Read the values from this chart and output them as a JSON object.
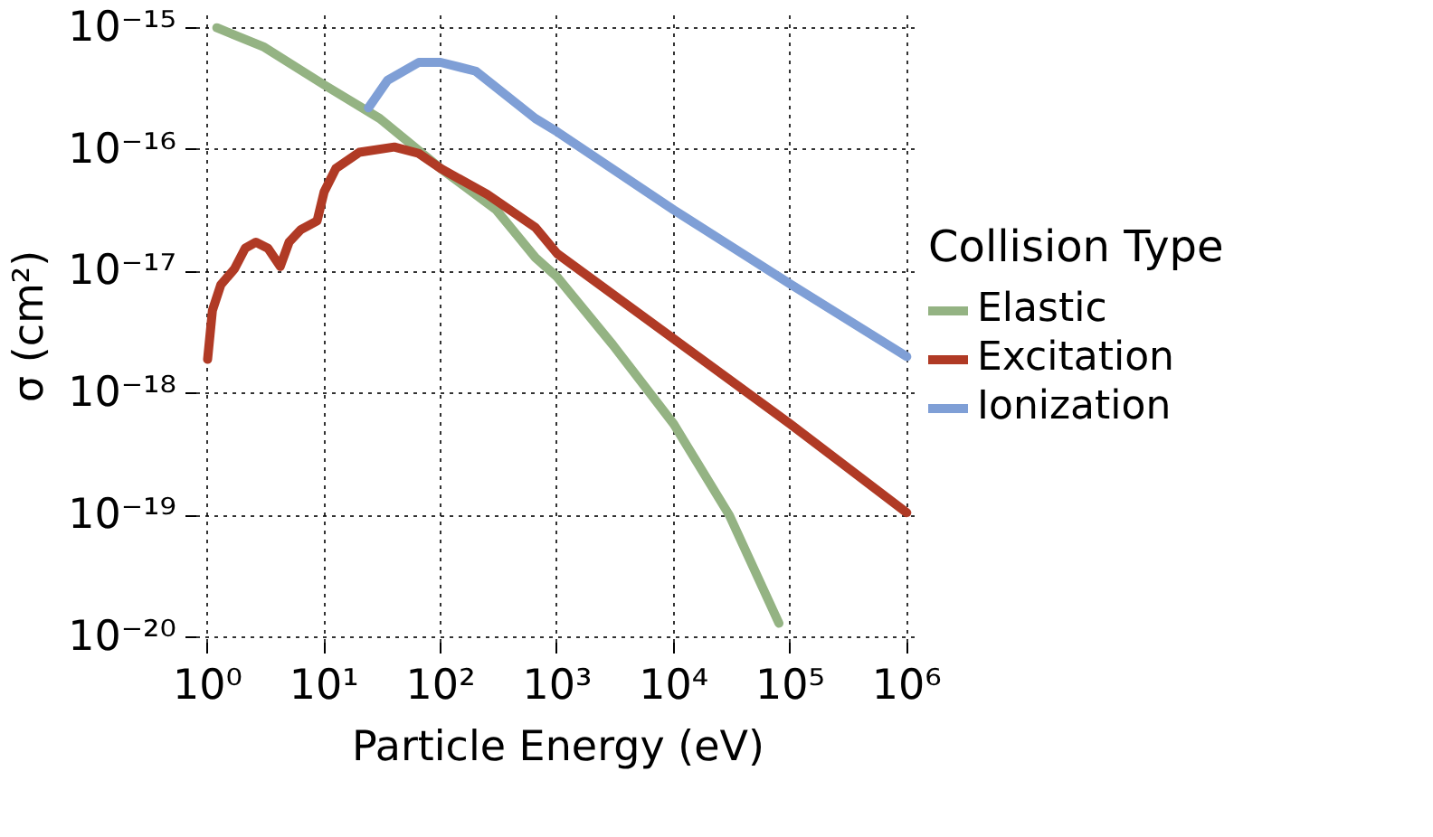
{
  "chart_data": {
    "type": "line",
    "xlabel": "Particle Energy (eV)",
    "ylabel": "σ (cm²)",
    "legend_title": "Collision Type",
    "log": "xy",
    "grid": true,
    "legend": "right",
    "line_style": "solid",
    "marker": "none",
    "xlim": [
      0.8,
      1300000.0
    ],
    "ylim": [
      9e-21,
      1.4e-15
    ],
    "xticks": [
      {
        "value": 1,
        "label": "10⁰"
      },
      {
        "value": 10,
        "label": "10¹"
      },
      {
        "value": 100,
        "label": "10²"
      },
      {
        "value": 1000,
        "label": "10³"
      },
      {
        "value": 10000,
        "label": "10⁴"
      },
      {
        "value": 100000,
        "label": "10⁵"
      },
      {
        "value": 1000000,
        "label": "10⁶"
      }
    ],
    "yticks": [
      {
        "value": 1e-20,
        "label": "10⁻²⁰"
      },
      {
        "value": 1e-19,
        "label": "10⁻¹⁹"
      },
      {
        "value": 1e-18,
        "label": "10⁻¹⁸"
      },
      {
        "value": 1e-17,
        "label": "10⁻¹⁷"
      },
      {
        "value": 1e-16,
        "label": "10⁻¹⁶"
      },
      {
        "value": 1e-15,
        "label": "10⁻¹⁵"
      }
    ],
    "series": [
      {
        "name": "Elastic",
        "color": "#94b383",
        "x": [
          1.2,
          3,
          10,
          30,
          100,
          300,
          650,
          1000,
          3000,
          10000,
          30000,
          80000
        ],
        "values": [
          1e-15,
          7e-16,
          3.4e-16,
          1.8e-16,
          7e-17,
          3.2e-17,
          1.3e-17,
          9e-18,
          2.5e-18,
          5.6e-19,
          1e-19,
          1.3e-20
        ]
      },
      {
        "name": "Excitation",
        "color": "#b03a25",
        "x": [
          1,
          1.1,
          1.3,
          1.7,
          2.1,
          2.6,
          3.3,
          4.2,
          5,
          6.3,
          8.7,
          10,
          12.6,
          20,
          40,
          65,
          100,
          250,
          650,
          1000,
          10000,
          100000,
          1000000
        ],
        "values": [
          1.9e-18,
          4.8e-18,
          7.8e-18,
          1.05e-17,
          1.55e-17,
          1.74e-17,
          1.55e-17,
          1.1e-17,
          1.74e-17,
          2.2e-17,
          2.6e-17,
          4.5e-17,
          7e-17,
          9.5e-17,
          1.05e-16,
          9.3e-17,
          7e-17,
          4.3e-17,
          2.3e-17,
          1.4e-17,
          2.8e-18,
          5.6e-19,
          1.05e-19
        ]
      },
      {
        "name": "Ionization",
        "color": "#7f9fd6",
        "x": [
          24,
          35,
          65,
          100,
          200,
          650,
          1000,
          10000,
          100000,
          1000000
        ],
        "values": [
          2.2e-16,
          3.7e-16,
          5.2e-16,
          5.2e-16,
          4.4e-16,
          1.8e-16,
          1.4e-16,
          3.2e-17,
          7.9e-18,
          2e-18
        ]
      }
    ]
  }
}
